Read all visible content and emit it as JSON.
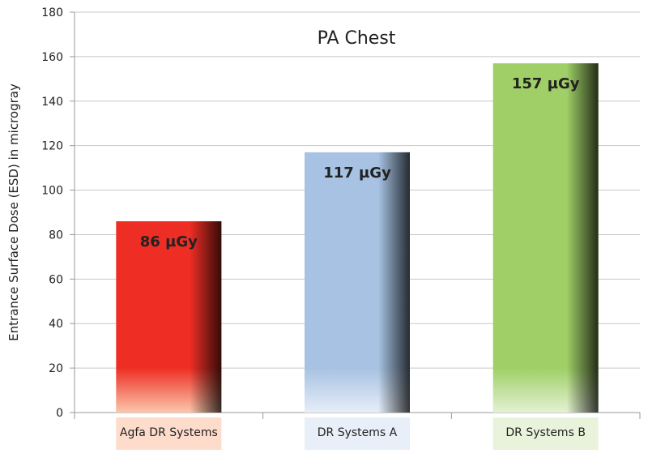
{
  "chart_data": {
    "type": "bar",
    "title": "PA Chest",
    "ylabel": "Entrance Surface Dose (ESD) in microgray",
    "xlabel": "",
    "categories": [
      "Agfa DR Systems",
      "DR Systems A",
      "DR Systems B"
    ],
    "values": [
      86,
      117,
      157
    ],
    "data_labels": [
      "86 µGy",
      "117 µGy",
      "157 µGy"
    ],
    "ylim": [
      0,
      180
    ],
    "yticks": [
      0,
      20,
      40,
      60,
      80,
      100,
      120,
      140,
      160,
      180
    ],
    "grid": true,
    "legend": "none",
    "colors": {
      "bars": [
        "#ee2e24",
        "#a7c2e2",
        "#9fcf66"
      ],
      "bar_bases": [
        "#fbc7ab",
        "#e6eef8",
        "#e4f1d4"
      ],
      "category_boxes": [
        "#fddccb",
        "#e9eff8",
        "#e9f3dc"
      ],
      "grid": "#c8c8c8",
      "axis": "#9a9a9a",
      "text": "#222222"
    }
  }
}
